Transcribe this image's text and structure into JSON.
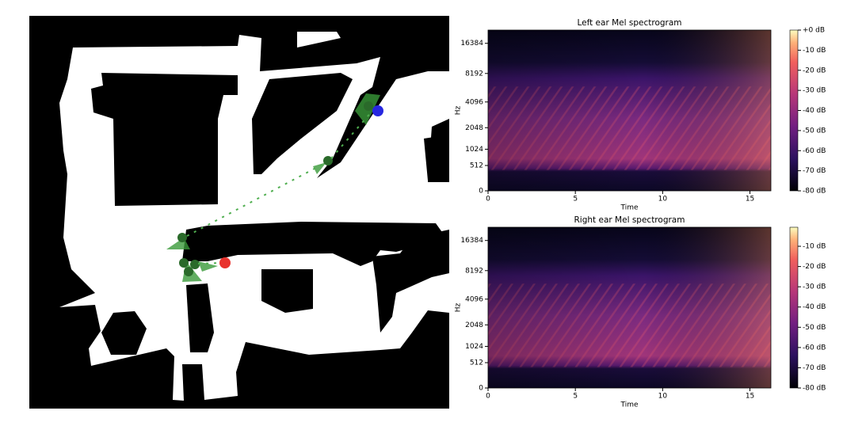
{
  "chart_data": [
    {
      "type": "heatmap",
      "title": "Left ear Mel spectrogram",
      "x_label": "Time",
      "y_label": "Hz",
      "xlim": [
        0,
        16.2
      ],
      "xticks": [
        0,
        5,
        10,
        15
      ],
      "ylim": [
        0,
        22050
      ],
      "yticks": [
        0,
        512,
        1024,
        2048,
        4096,
        8192,
        16384
      ],
      "y_scale": "mel",
      "colormap": "magma",
      "colorbar": {
        "lim": [
          -80,
          0
        ],
        "ticks": [
          {
            "value": 0,
            "label": "+0 dB"
          },
          {
            "value": -10,
            "label": "-10 dB"
          },
          {
            "value": -20,
            "label": "-20 dB"
          },
          {
            "value": -30,
            "label": "-30 dB"
          },
          {
            "value": -40,
            "label": "-40 dB"
          },
          {
            "value": -50,
            "label": "-50 dB"
          },
          {
            "value": -60,
            "label": "-60 dB"
          },
          {
            "value": -70,
            "label": "-70 dB"
          },
          {
            "value": -80,
            "label": "-80 dB"
          }
        ]
      }
    },
    {
      "type": "heatmap",
      "title": "Right ear Mel spectrogram",
      "x_label": "Time",
      "y_label": "Hz",
      "xlim": [
        0,
        16.2
      ],
      "xticks": [
        0,
        5,
        10,
        15
      ],
      "ylim": [
        0,
        22050
      ],
      "yticks": [
        0,
        512,
        1024,
        2048,
        4096,
        8192,
        16384
      ],
      "y_scale": "mel",
      "colormap": "magma",
      "colorbar": {
        "lim": [
          -80,
          -0.6
        ],
        "ticks": [
          {
            "value": -10,
            "label": "-10 dB"
          },
          {
            "value": -20,
            "label": "-20 dB"
          },
          {
            "value": -30,
            "label": "-30 dB"
          },
          {
            "value": -40,
            "label": "-40 dB"
          },
          {
            "value": -50,
            "label": "-50 dB"
          },
          {
            "value": -60,
            "label": "-60 dB"
          },
          {
            "value": -70,
            "label": "-70 dB"
          },
          {
            "value": -80,
            "label": "-80 dB"
          }
        ]
      }
    }
  ]
}
